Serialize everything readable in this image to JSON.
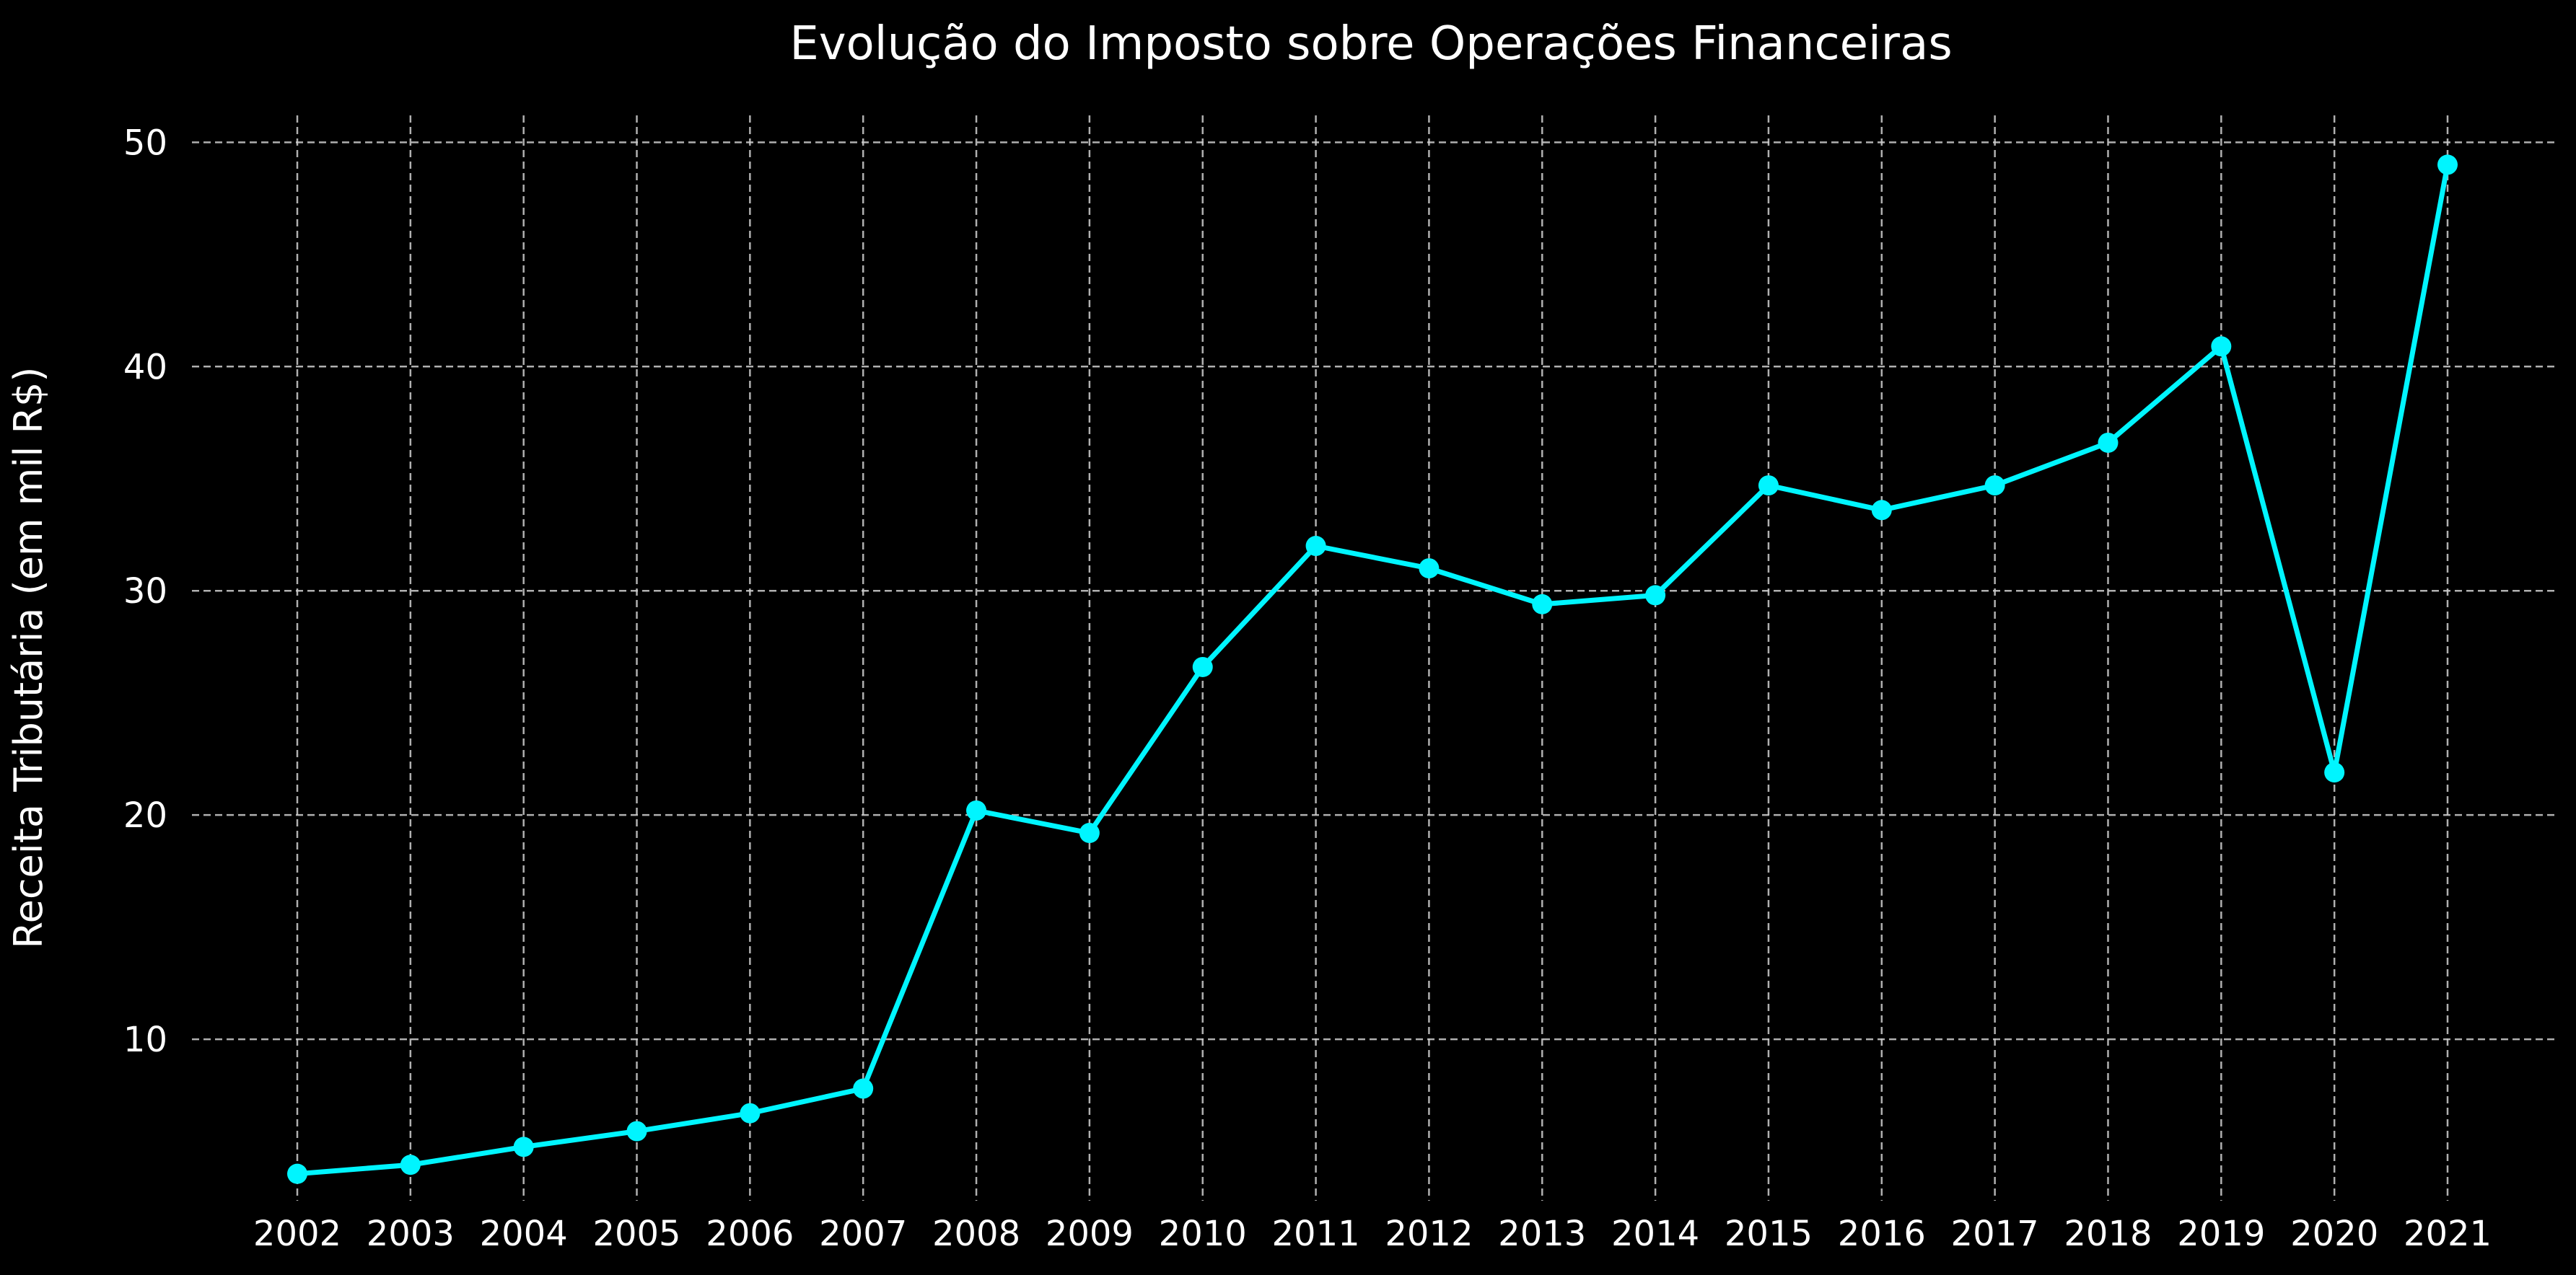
{
  "chart_data": {
    "type": "line",
    "title": "Evolução do Imposto sobre Operações Financeiras",
    "xlabel": "",
    "ylabel": "Receita Tributária (em mil R$)",
    "x": [
      "2002",
      "2003",
      "2004",
      "2005",
      "2006",
      "2007",
      "2008",
      "2009",
      "2010",
      "2011",
      "2012",
      "2013",
      "2014",
      "2015",
      "2016",
      "2017",
      "2018",
      "2019",
      "2020",
      "2021"
    ],
    "series": [
      {
        "values": [
          4.0,
          4.4,
          5.2,
          5.9,
          6.7,
          7.8,
          20.2,
          19.2,
          26.6,
          32.0,
          31.0,
          29.4,
          29.8,
          34.7,
          33.6,
          34.7,
          36.6,
          40.9,
          21.9,
          49.0
        ],
        "color": "#00f5ff",
        "marker": "circle"
      }
    ],
    "yticks": [
      10,
      20,
      30,
      40,
      50
    ],
    "ylim": [
      2.8,
      51.2
    ],
    "grid": true,
    "legend": "none",
    "background": "#000000"
  }
}
